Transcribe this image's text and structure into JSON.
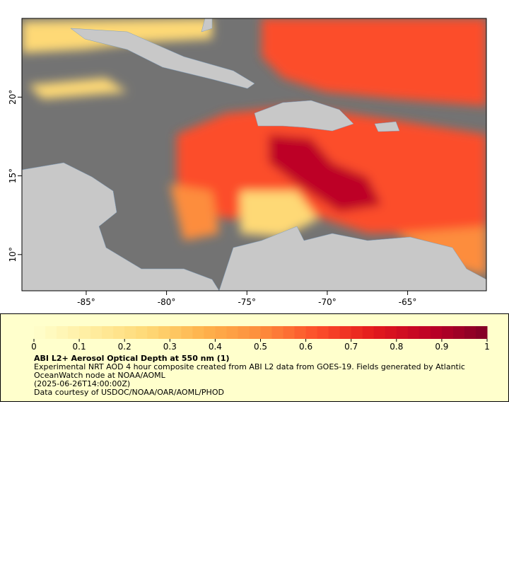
{
  "map": {
    "xlim": [
      -89,
      -60.1
    ],
    "ylim": [
      7.7,
      25
    ],
    "xticks": [
      {
        "value": -85,
        "label": "-85°"
      },
      {
        "value": -80,
        "label": "-80°"
      },
      {
        "value": -75,
        "label": "-75°"
      },
      {
        "value": -70,
        "label": "-70°"
      },
      {
        "value": -65,
        "label": "-65°"
      }
    ],
    "yticks": [
      {
        "value": 10,
        "label": "10°"
      },
      {
        "value": 15,
        "label": "15°"
      },
      {
        "value": 20,
        "label": "20°"
      }
    ]
  },
  "legend": {
    "range": [
      0,
      1
    ],
    "ticks": [
      0,
      0.1,
      0.2,
      0.3,
      0.4,
      0.5,
      0.6,
      0.7,
      0.8,
      0.9,
      1
    ],
    "colormap": [
      "#ffffcc",
      "#ffeda0",
      "#fed976",
      "#feb24c",
      "#fd8d3c",
      "#fc4e2a",
      "#e31a1c",
      "#bd0026",
      "#800026"
    ],
    "title": "ABI L2+ Aerosol Optical Depth at 550 nm (1)",
    "description": "Experimental NRT AOD 4 hour composite created from ABI L2 data from GOES-19. Fields generated by Atlantic OceanWatch node at NOAA/AOML",
    "time": "(2025-06-26T14:00:00Z)",
    "credit": "Data courtesy of USDOC/NOAA/OAR/AOML/PHOD"
  }
}
